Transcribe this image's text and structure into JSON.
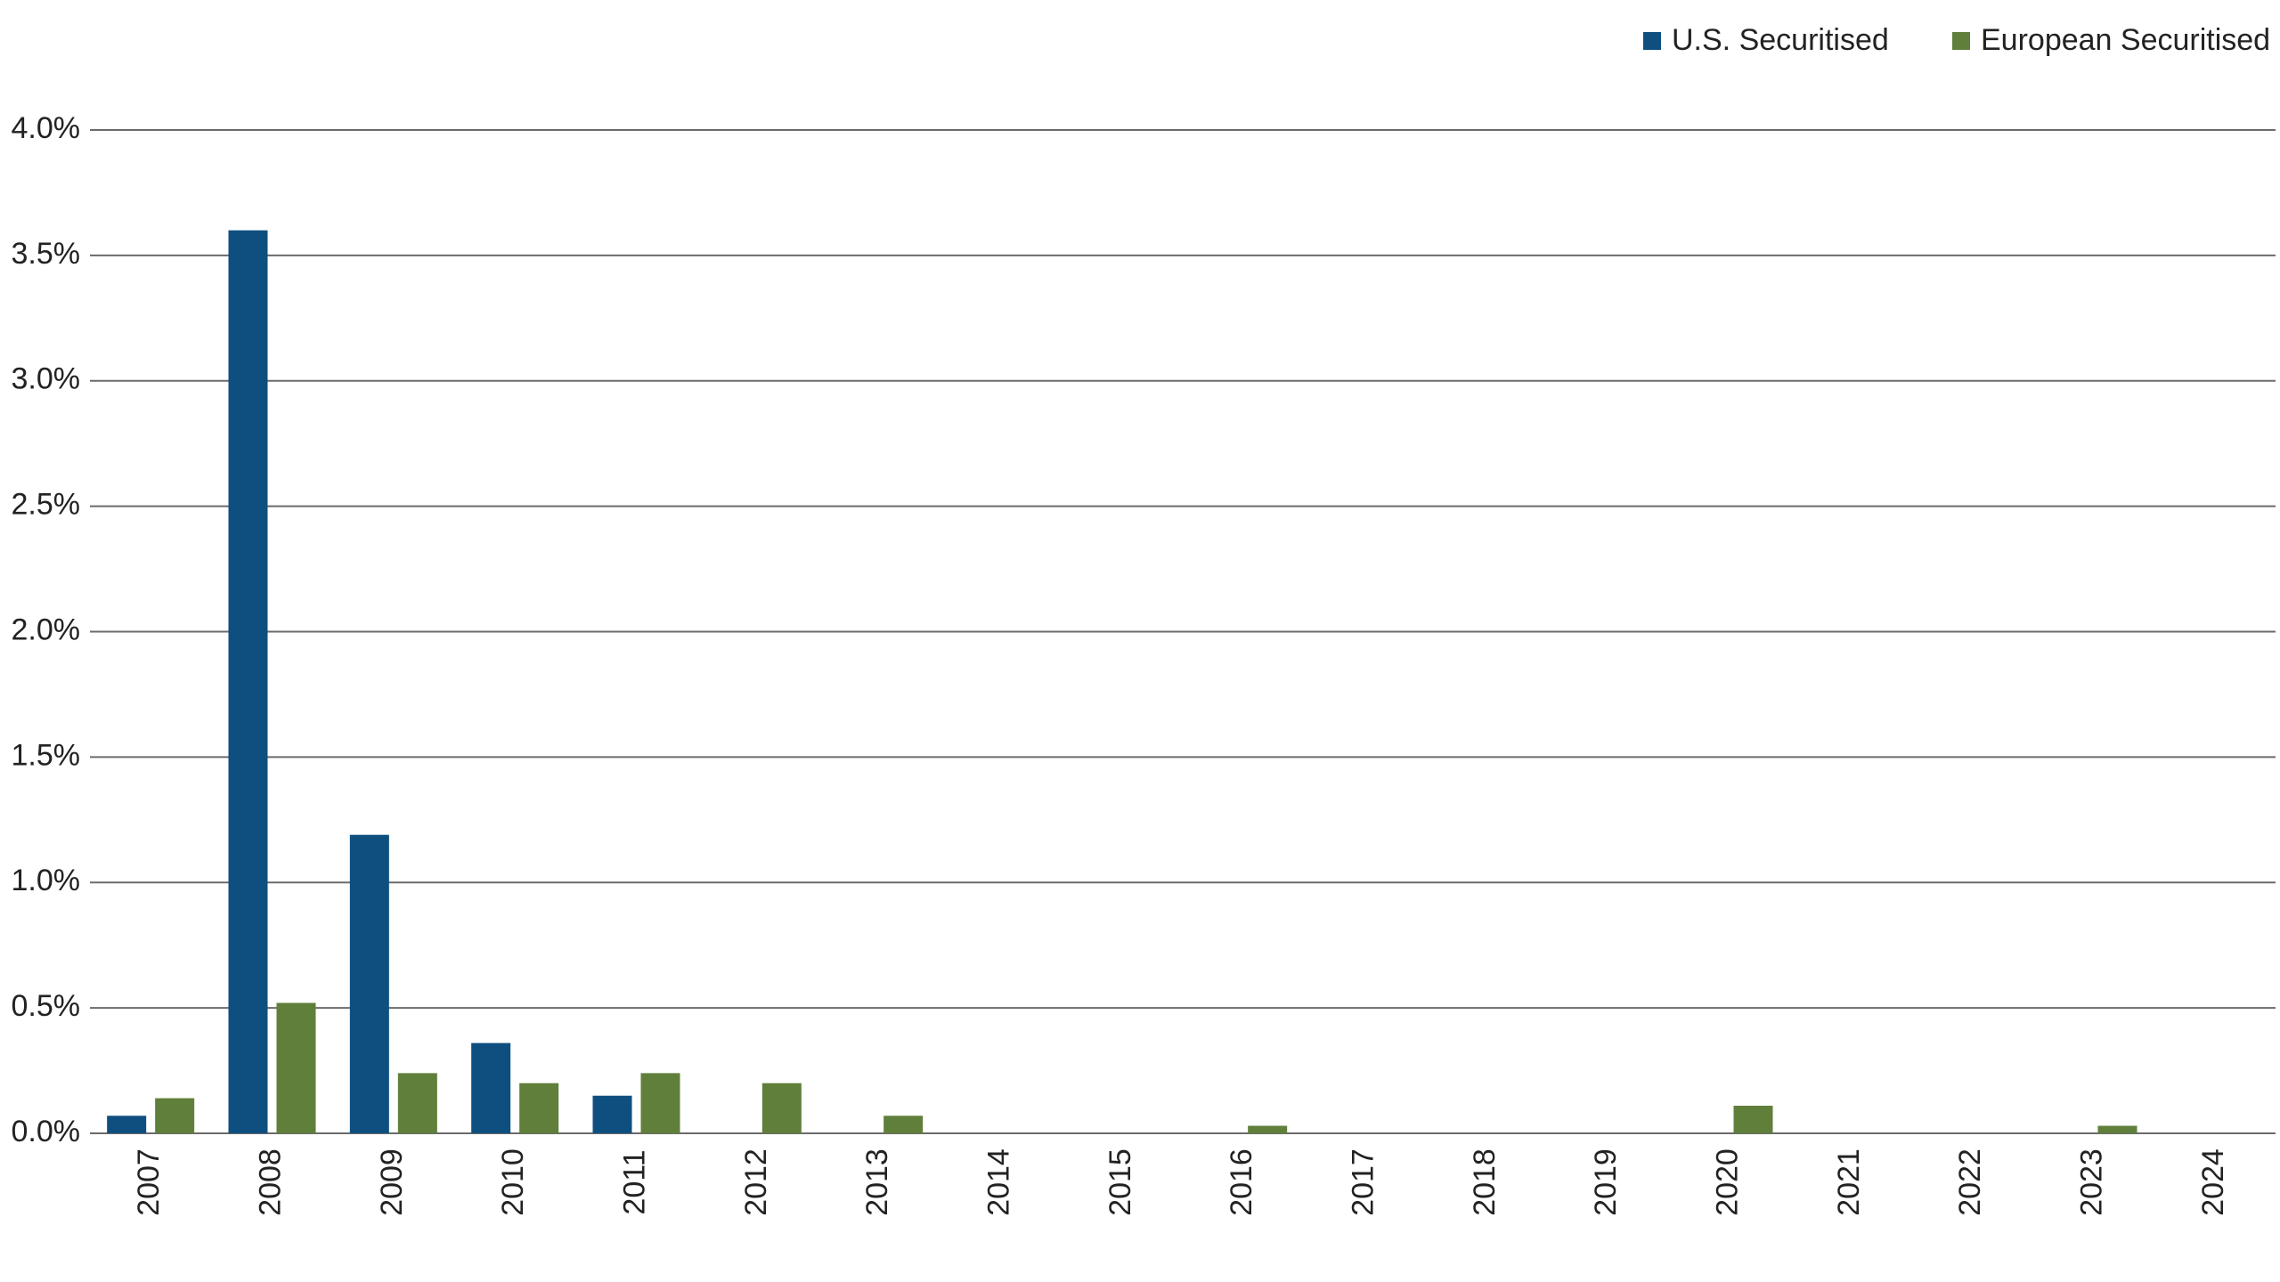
{
  "chart_data": {
    "type": "bar",
    "categories": [
      "2007",
      "2008",
      "2009",
      "2010",
      "2011",
      "2012",
      "2013",
      "2014",
      "2015",
      "2016",
      "2017",
      "2018",
      "2019",
      "2020",
      "2021",
      "2022",
      "2023",
      "2024"
    ],
    "series": [
      {
        "name": "U.S. Securitised",
        "color": "#0f4f80",
        "values": [
          0.07,
          3.6,
          1.19,
          0.36,
          0.15,
          0,
          0,
          0,
          0,
          0,
          0,
          0,
          0,
          0,
          0,
          0,
          0,
          0
        ]
      },
      {
        "name": "European Securitised",
        "color": "#5f7f3a",
        "values": [
          0.14,
          0.52,
          0.24,
          0.2,
          0.24,
          0.2,
          0.07,
          0,
          0,
          0.03,
          0,
          0,
          0,
          0.11,
          0,
          0,
          0.03,
          0
        ]
      }
    ],
    "ylim": [
      0,
      4
    ],
    "yticks": [
      {
        "value": 0,
        "label": "0.0%"
      },
      {
        "value": 0.5,
        "label": "0.5%"
      },
      {
        "value": 1,
        "label": "1.0%"
      },
      {
        "value": 1.5,
        "label": "1.5%"
      },
      {
        "value": 2,
        "label": "2.0%"
      },
      {
        "value": 2.5,
        "label": "2.5%"
      },
      {
        "value": 3,
        "label": "3.0%"
      },
      {
        "value": 3.5,
        "label": "3.5%"
      },
      {
        "value": 4,
        "label": "4.0%"
      }
    ],
    "grid": true
  }
}
